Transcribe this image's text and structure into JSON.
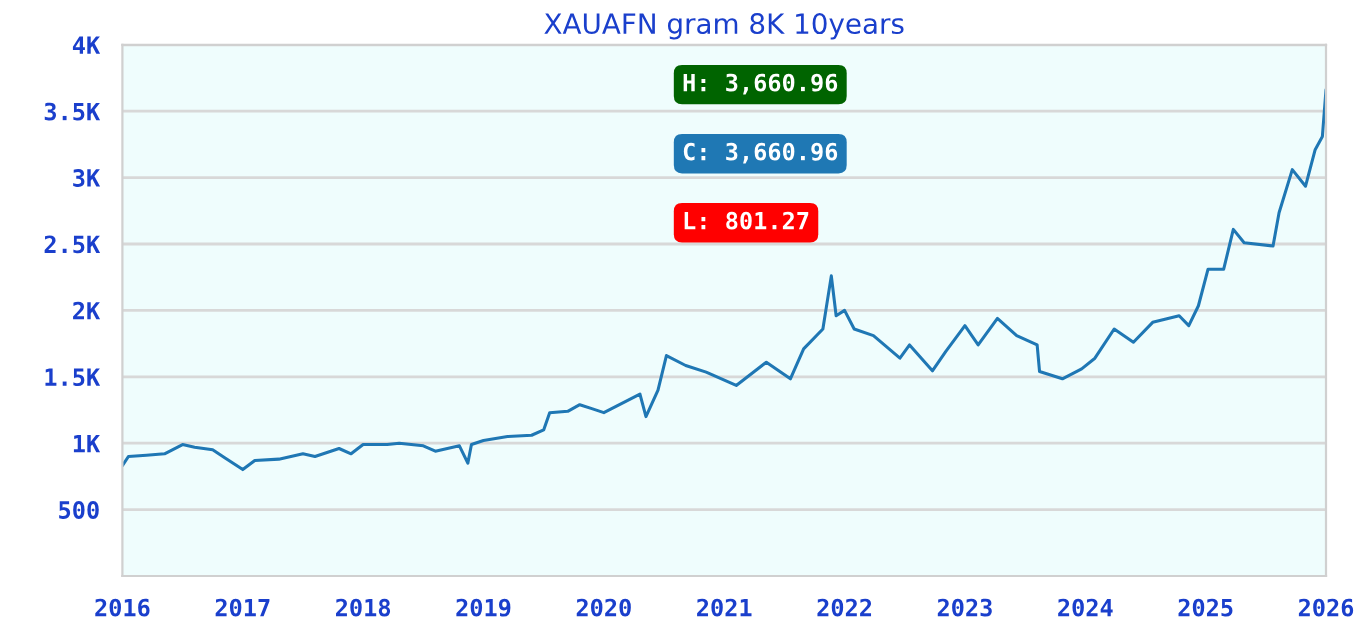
{
  "chart_data": {
    "type": "line",
    "title": "XAUAFN gram 8K 10years",
    "annotations": [
      "H: 3,660.96",
      "C: 3,660.96",
      "L: 801.27"
    ],
    "xlim": [
      2016,
      2026
    ],
    "xticks": [
      2016,
      2017,
      2018,
      2019,
      2020,
      2021,
      2022,
      2023,
      2024,
      2025,
      2026
    ],
    "ylim": [
      0,
      4000
    ],
    "yticks": [
      {
        "value": 500,
        "label": "500"
      },
      {
        "value": 1000,
        "label": "1K"
      },
      {
        "value": 1500,
        "label": "1.5K"
      },
      {
        "value": 2000,
        "label": "2K"
      },
      {
        "value": 2500,
        "label": "2.5K"
      },
      {
        "value": 3000,
        "label": "3K"
      },
      {
        "value": 3500,
        "label": "3.5K"
      },
      {
        "value": 4000,
        "label": "4K"
      }
    ],
    "grid": "y",
    "marker": "none",
    "line_style": "solid",
    "series": [
      {
        "color": "#1f77b4",
        "x": [
          2016.0,
          2016.05,
          2016.2,
          2016.35,
          2016.5,
          2016.6,
          2016.75,
          2016.85,
          2017.0,
          2017.1,
          2017.3,
          2017.5,
          2017.6,
          2017.8,
          2017.9,
          2018.0,
          2018.2,
          2018.3,
          2018.5,
          2018.6,
          2018.8,
          2018.87,
          2018.9,
          2019.0,
          2019.2,
          2019.4,
          2019.5,
          2019.55,
          2019.7,
          2019.8,
          2019.9,
          2020.0,
          2020.15,
          2020.3,
          2020.35,
          2020.45,
          2020.52,
          2020.68,
          2020.85,
          2021.1,
          2021.35,
          2021.55,
          2021.66,
          2021.82,
          2021.89,
          2021.93,
          2022.0,
          2022.08,
          2022.24,
          2022.46,
          2022.54,
          2022.73,
          2022.84,
          2023.0,
          2023.11,
          2023.27,
          2023.43,
          2023.6,
          2023.62,
          2023.81,
          2023.97,
          2024.08,
          2024.24,
          2024.4,
          2024.56,
          2024.78,
          2024.86,
          2024.94,
          2025.02,
          2025.15,
          2025.23,
          2025.32,
          2025.56,
          2025.61,
          2025.72,
          2025.83,
          2025.91,
          2025.97,
          2026.0
        ],
        "values": [
          830,
          900,
          910,
          920,
          990,
          970,
          950,
          890,
          801.27,
          870,
          880,
          920,
          900,
          960,
          920,
          990,
          990,
          1000,
          980,
          940,
          980,
          850,
          990,
          1020,
          1050,
          1060,
          1100,
          1230,
          1240,
          1290,
          1260,
          1230,
          1300,
          1370,
          1200,
          1400,
          1660,
          1585,
          1535,
          1435,
          1610,
          1485,
          1710,
          1860,
          2260,
          1960,
          2000,
          1860,
          1810,
          1640,
          1740,
          1545,
          1690,
          1885,
          1740,
          1940,
          1810,
          1740,
          1540,
          1485,
          1560,
          1640,
          1860,
          1760,
          1910,
          1960,
          1885,
          2035,
          2310,
          2310,
          2610,
          2510,
          2485,
          2735,
          3060,
          2935,
          3210,
          3310,
          3660.96
        ]
      }
    ]
  }
}
